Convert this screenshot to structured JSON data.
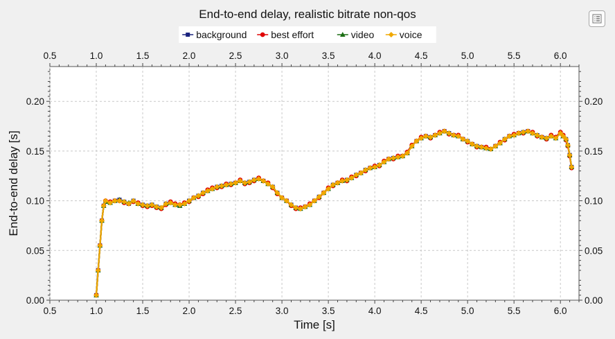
{
  "chart_data": {
    "type": "line",
    "title": "End-to-end delay, realistic bitrate non-qos",
    "xlabel": "Time [s]",
    "ylabel": "End-to-end delay [s]",
    "xlim": [
      0.5,
      6.2
    ],
    "ylim": [
      0.0,
      0.235
    ],
    "xticks": [
      "0.5",
      "1.0",
      "1.5",
      "2.0",
      "2.5",
      "3.0",
      "3.5",
      "4.0",
      "4.5",
      "5.0",
      "5.5",
      "6.0"
    ],
    "yticks": [
      "0.00",
      "0.05",
      "0.10",
      "0.15",
      "0.20"
    ],
    "grid": true,
    "legend_position": "top-center",
    "x": [
      1.0,
      1.02,
      1.04,
      1.06,
      1.08,
      1.1,
      1.15,
      1.2,
      1.25,
      1.3,
      1.35,
      1.4,
      1.45,
      1.5,
      1.55,
      1.6,
      1.65,
      1.7,
      1.75,
      1.8,
      1.85,
      1.9,
      1.95,
      2.0,
      2.05,
      2.1,
      2.15,
      2.2,
      2.25,
      2.3,
      2.35,
      2.4,
      2.45,
      2.5,
      2.55,
      2.6,
      2.65,
      2.7,
      2.75,
      2.8,
      2.85,
      2.9,
      2.95,
      3.0,
      3.05,
      3.1,
      3.15,
      3.2,
      3.25,
      3.3,
      3.35,
      3.4,
      3.45,
      3.5,
      3.55,
      3.6,
      3.65,
      3.7,
      3.75,
      3.8,
      3.85,
      3.9,
      3.95,
      4.0,
      4.05,
      4.1,
      4.15,
      4.2,
      4.25,
      4.3,
      4.35,
      4.4,
      4.45,
      4.5,
      4.55,
      4.6,
      4.65,
      4.7,
      4.75,
      4.8,
      4.85,
      4.9,
      4.95,
      5.0,
      5.05,
      5.1,
      5.15,
      5.2,
      5.25,
      5.3,
      5.35,
      5.4,
      5.45,
      5.5,
      5.55,
      5.6,
      5.65,
      5.7,
      5.75,
      5.8,
      5.85,
      5.9,
      5.95,
      6.0,
      6.03,
      6.06,
      6.08,
      6.1,
      6.12
    ],
    "series": [
      {
        "name": "background",
        "color": "#1a237e",
        "marker": "square",
        "values": [
          0.005,
          0.03,
          0.055,
          0.08,
          0.095,
          0.099,
          0.098,
          0.1,
          0.101,
          0.099,
          0.097,
          0.1,
          0.097,
          0.096,
          0.095,
          0.096,
          0.094,
          0.093,
          0.097,
          0.098,
          0.096,
          0.095,
          0.097,
          0.1,
          0.103,
          0.105,
          0.108,
          0.11,
          0.112,
          0.114,
          0.115,
          0.116,
          0.117,
          0.118,
          0.12,
          0.118,
          0.119,
          0.121,
          0.122,
          0.12,
          0.117,
          0.114,
          0.108,
          0.103,
          0.1,
          0.096,
          0.093,
          0.092,
          0.094,
          0.096,
          0.1,
          0.104,
          0.108,
          0.112,
          0.116,
          0.118,
          0.12,
          0.121,
          0.123,
          0.126,
          0.128,
          0.131,
          0.133,
          0.134,
          0.136,
          0.139,
          0.142,
          0.143,
          0.144,
          0.145,
          0.148,
          0.155,
          0.16,
          0.163,
          0.165,
          0.164,
          0.166,
          0.168,
          0.17,
          0.168,
          0.166,
          0.165,
          0.162,
          0.16,
          0.157,
          0.155,
          0.154,
          0.153,
          0.152,
          0.155,
          0.158,
          0.162,
          0.165,
          0.166,
          0.168,
          0.169,
          0.17,
          0.168,
          0.166,
          0.164,
          0.163,
          0.165,
          0.163,
          0.168,
          0.165,
          0.162,
          0.156,
          0.146,
          0.134
        ]
      },
      {
        "name": "best effort",
        "color": "#e00000",
        "marker": "circle",
        "values": [
          0.005,
          0.03,
          0.055,
          0.08,
          0.095,
          0.1,
          0.099,
          0.1,
          0.1,
          0.098,
          0.097,
          0.099,
          0.098,
          0.095,
          0.094,
          0.095,
          0.093,
          0.092,
          0.096,
          0.099,
          0.097,
          0.096,
          0.098,
          0.099,
          0.103,
          0.104,
          0.107,
          0.111,
          0.113,
          0.113,
          0.114,
          0.117,
          0.116,
          0.118,
          0.121,
          0.117,
          0.118,
          0.12,
          0.123,
          0.12,
          0.118,
          0.113,
          0.107,
          0.103,
          0.1,
          0.095,
          0.092,
          0.093,
          0.094,
          0.097,
          0.1,
          0.103,
          0.108,
          0.113,
          0.115,
          0.118,
          0.121,
          0.12,
          0.124,
          0.125,
          0.128,
          0.13,
          0.133,
          0.135,
          0.135,
          0.14,
          0.142,
          0.142,
          0.145,
          0.145,
          0.149,
          0.156,
          0.16,
          0.164,
          0.165,
          0.163,
          0.166,
          0.169,
          0.17,
          0.167,
          0.166,
          0.166,
          0.162,
          0.159,
          0.157,
          0.154,
          0.154,
          0.154,
          0.152,
          0.155,
          0.159,
          0.161,
          0.165,
          0.167,
          0.168,
          0.168,
          0.17,
          0.169,
          0.165,
          0.164,
          0.162,
          0.166,
          0.164,
          0.169,
          0.166,
          0.161,
          0.155,
          0.145,
          0.133
        ]
      },
      {
        "name": "video",
        "color": "#1b6e14",
        "marker": "triangle",
        "values": [
          0.005,
          0.03,
          0.055,
          0.08,
          0.095,
          0.099,
          0.098,
          0.1,
          0.101,
          0.099,
          0.098,
          0.1,
          0.097,
          0.096,
          0.095,
          0.096,
          0.094,
          0.093,
          0.097,
          0.098,
          0.096,
          0.095,
          0.097,
          0.1,
          0.103,
          0.105,
          0.108,
          0.11,
          0.112,
          0.114,
          0.115,
          0.116,
          0.117,
          0.118,
          0.12,
          0.118,
          0.119,
          0.121,
          0.122,
          0.12,
          0.117,
          0.114,
          0.108,
          0.103,
          0.1,
          0.096,
          0.093,
          0.092,
          0.094,
          0.096,
          0.1,
          0.104,
          0.108,
          0.112,
          0.116,
          0.118,
          0.12,
          0.121,
          0.123,
          0.126,
          0.128,
          0.131,
          0.133,
          0.134,
          0.136,
          0.139,
          0.142,
          0.143,
          0.144,
          0.145,
          0.148,
          0.155,
          0.16,
          0.163,
          0.165,
          0.164,
          0.166,
          0.168,
          0.17,
          0.168,
          0.166,
          0.165,
          0.162,
          0.16,
          0.157,
          0.155,
          0.154,
          0.153,
          0.152,
          0.155,
          0.158,
          0.162,
          0.165,
          0.166,
          0.168,
          0.169,
          0.17,
          0.168,
          0.166,
          0.164,
          0.163,
          0.165,
          0.163,
          0.168,
          0.165,
          0.162,
          0.156,
          0.146,
          0.134
        ]
      },
      {
        "name": "voice",
        "color": "#f0a800",
        "marker": "diamond",
        "values": [
          0.005,
          0.03,
          0.055,
          0.08,
          0.095,
          0.1,
          0.098,
          0.1,
          0.1,
          0.099,
          0.097,
          0.1,
          0.097,
          0.096,
          0.095,
          0.096,
          0.094,
          0.093,
          0.097,
          0.098,
          0.096,
          0.096,
          0.097,
          0.1,
          0.103,
          0.105,
          0.108,
          0.11,
          0.112,
          0.114,
          0.115,
          0.116,
          0.117,
          0.118,
          0.12,
          0.118,
          0.119,
          0.121,
          0.122,
          0.12,
          0.117,
          0.114,
          0.108,
          0.103,
          0.1,
          0.096,
          0.093,
          0.092,
          0.094,
          0.096,
          0.1,
          0.104,
          0.108,
          0.112,
          0.116,
          0.118,
          0.12,
          0.121,
          0.123,
          0.126,
          0.128,
          0.131,
          0.133,
          0.134,
          0.136,
          0.139,
          0.142,
          0.143,
          0.144,
          0.145,
          0.148,
          0.155,
          0.16,
          0.163,
          0.165,
          0.164,
          0.166,
          0.168,
          0.17,
          0.168,
          0.166,
          0.165,
          0.162,
          0.16,
          0.157,
          0.155,
          0.154,
          0.153,
          0.152,
          0.155,
          0.158,
          0.162,
          0.165,
          0.166,
          0.168,
          0.169,
          0.17,
          0.168,
          0.166,
          0.164,
          0.163,
          0.165,
          0.163,
          0.168,
          0.165,
          0.162,
          0.156,
          0.146,
          0.134
        ]
      }
    ]
  },
  "toolbar": {
    "menu_icon": "list-menu-icon"
  }
}
